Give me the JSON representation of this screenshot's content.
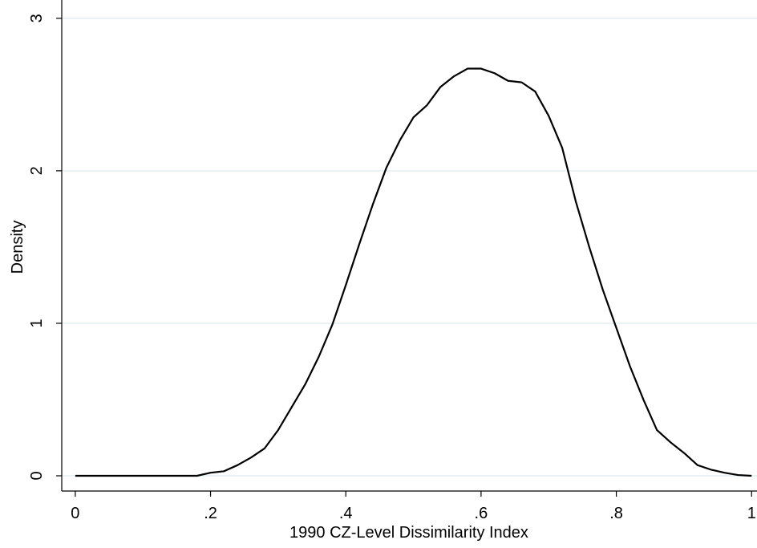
{
  "chart_data": {
    "type": "line",
    "x_label": "1990 CZ-Level Dissimilarity Index",
    "y_label": "Density",
    "x": [
      0,
      0.02,
      0.04,
      0.06,
      0.08,
      0.1,
      0.12,
      0.14,
      0.16,
      0.18,
      0.2,
      0.22,
      0.24,
      0.26,
      0.28,
      0.3,
      0.32,
      0.34,
      0.36,
      0.38,
      0.4,
      0.42,
      0.44,
      0.46,
      0.48,
      0.5,
      0.52,
      0.54,
      0.56,
      0.58,
      0.6,
      0.62,
      0.64,
      0.66,
      0.68,
      0.7,
      0.72,
      0.74,
      0.76,
      0.78,
      0.8,
      0.82,
      0.84,
      0.86,
      0.88,
      0.9,
      0.92,
      0.94,
      0.96,
      0.98,
      1
    ],
    "series": [
      {
        "name": "Density",
        "color": "#000000",
        "values": [
          0,
          0,
          0,
          0,
          0,
          0,
          0,
          0,
          0,
          0,
          0.02,
          0.03,
          0.07,
          0.12,
          0.18,
          0.3,
          0.45,
          0.6,
          0.78,
          0.99,
          1.25,
          1.52,
          1.78,
          2.02,
          2.2,
          2.35,
          2.43,
          2.55,
          2.62,
          2.67,
          2.67,
          2.64,
          2.59,
          2.58,
          2.52,
          2.36,
          2.15,
          1.8,
          1.5,
          1.22,
          0.97,
          0.72,
          0.5,
          0.3,
          0.22,
          0.15,
          0.07,
          0.04,
          0.02,
          0.005,
          0
        ]
      }
    ],
    "xlim": [
      -0.02,
      1.008
    ],
    "ylim": [
      -0.1,
      3.12
    ],
    "xticks": [
      0,
      {
        "value": 0.2,
        "label": ".2"
      },
      {
        "value": 0.4,
        "label": ".4"
      },
      {
        "value": 0.6,
        "label": ".6"
      },
      {
        "value": 0.8,
        "label": ".8"
      },
      1
    ],
    "yticks": [
      0,
      1,
      2,
      3
    ],
    "grid": true,
    "grid_color": "#e4eef0"
  }
}
